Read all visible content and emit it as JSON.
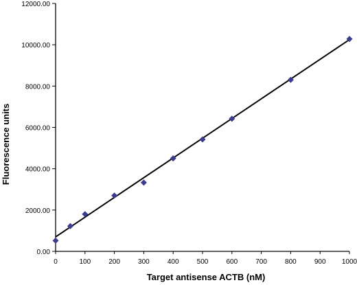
{
  "chart_data": {
    "type": "scatter",
    "title": "",
    "xlabel": "Target antisense  ACTB (nM)",
    "ylabel": "Fluorescence units",
    "xlim": [
      0,
      1000
    ],
    "ylim": [
      0,
      12000
    ],
    "x_ticks": [
      0,
      100,
      200,
      300,
      400,
      500,
      600,
      700,
      800,
      900,
      1000
    ],
    "x_tick_labels": [
      "0",
      "100",
      "200",
      "300",
      "400",
      "500",
      "600",
      "700",
      "800",
      "900",
      "1000"
    ],
    "y_ticks": [
      0,
      2000,
      4000,
      6000,
      8000,
      10000,
      12000
    ],
    "y_tick_labels": [
      "0.00",
      "2000.00",
      "4000.00",
      "6000.00",
      "8000.00",
      "10000.00",
      "12000.00"
    ],
    "grid": false,
    "marker": "diamond",
    "marker_color": "#3b3b8f",
    "line_color": "#000000",
    "series": [
      {
        "x": [
          0,
          50,
          100,
          200,
          300,
          400,
          500,
          600,
          800,
          1000
        ],
        "y": [
          520,
          1220,
          1800,
          2700,
          3330,
          4500,
          5420,
          6420,
          8300,
          10280
        ]
      }
    ],
    "fit_line": {
      "x": [
        0,
        1000
      ],
      "y": [
        700,
        10250
      ]
    }
  }
}
